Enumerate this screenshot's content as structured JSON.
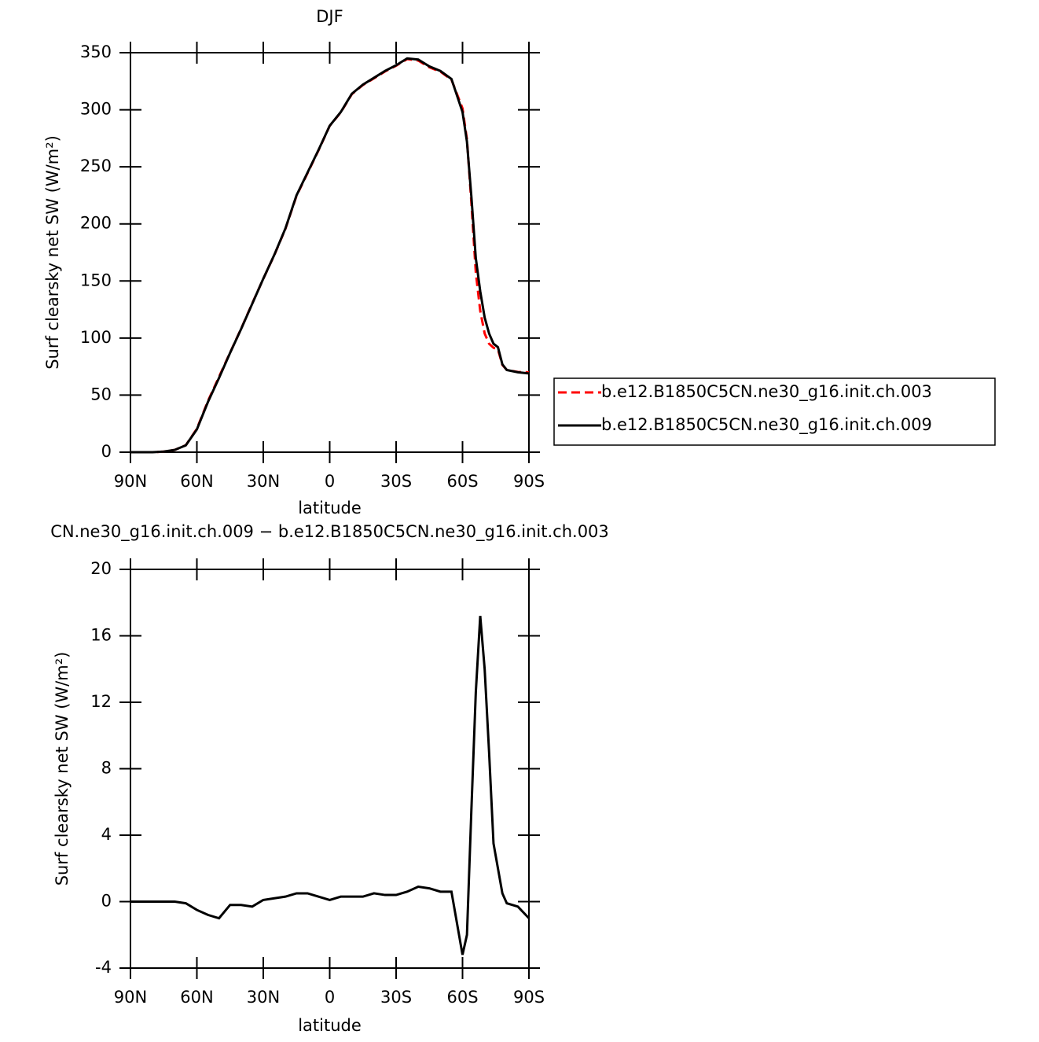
{
  "chart_data": [
    {
      "type": "line",
      "title": "DJF",
      "xlabel": "latitude",
      "ylabel": "Surf clearsky net SW (W/m²)",
      "x": [
        90,
        85,
        80,
        75,
        70,
        65,
        60,
        55,
        50,
        45,
        40,
        35,
        30,
        25,
        20,
        15,
        10,
        5,
        0,
        -5,
        -10,
        -15,
        -20,
        -25,
        -30,
        -35,
        -40,
        -45,
        -50,
        -55,
        -60,
        -62,
        -64,
        -66,
        -68,
        -70,
        -72,
        -74,
        -76,
        -78,
        -80,
        -85,
        -90
      ],
      "xlim": [
        90,
        -90
      ],
      "xticks": [
        {
          "value": 90,
          "label": "90N"
        },
        {
          "value": 60,
          "label": "60N"
        },
        {
          "value": 30,
          "label": "30N"
        },
        0,
        {
          "value": -30,
          "label": "30S"
        },
        {
          "value": -60,
          "label": "60S"
        },
        {
          "value": -90,
          "label": "90S"
        }
      ],
      "ylim": [
        0,
        350
      ],
      "yticks": [
        0,
        50,
        100,
        150,
        200,
        250,
        300,
        350
      ],
      "legend": "right",
      "series": [
        {
          "name": "b.e12.B1850C5CN.ne30_g16.init.ch.003",
          "color": "#ff0000",
          "linestyle": "dashed",
          "values": [
            0,
            0,
            0,
            0.5,
            2,
            6.1,
            20.5,
            44.8,
            66,
            87.2,
            108.2,
            130.3,
            151.9,
            172.8,
            195.7,
            224.5,
            244.5,
            264.7,
            285.9,
            297.7,
            313.7,
            321.7,
            327.5,
            333.6,
            338.6,
            344.4,
            343.1,
            337.2,
            333.4,
            326.4,
            301.2,
            274,
            218.5,
            157.4,
            123.8,
            104,
            95,
            91.5,
            90,
            76.5,
            72.1,
            70.3,
            70
          ]
        },
        {
          "name": "b.e12.B1850C5CN.ne30_g16.init.ch.009",
          "color": "#000000",
          "linestyle": "solid",
          "values": [
            0,
            0,
            0,
            0.5,
            2,
            6,
            20,
            44,
            65,
            87,
            108,
            130,
            152,
            173,
            196,
            225,
            245,
            265,
            286,
            298,
            314,
            322,
            328,
            334,
            339,
            345,
            344,
            338,
            334,
            327,
            298,
            272,
            224,
            170,
            141,
            118,
            104,
            95,
            92,
            77,
            72,
            70,
            69
          ]
        }
      ]
    },
    {
      "type": "line",
      "title": "CN.ne30_g16.init.ch.009 − b.e12.B1850C5CN.ne30_g16.init.ch.003",
      "xlabel": "latitude",
      "ylabel": "Surf clearsky net SW (W/m²)",
      "x": [
        90,
        85,
        80,
        75,
        70,
        65,
        60,
        55,
        50,
        45,
        40,
        35,
        30,
        25,
        20,
        15,
        10,
        5,
        0,
        -5,
        -10,
        -15,
        -20,
        -25,
        -30,
        -35,
        -40,
        -45,
        -50,
        -55,
        -60,
        -62,
        -64,
        -66,
        -68,
        -70,
        -72,
        -74,
        -76,
        -78,
        -80,
        -85,
        -90
      ],
      "xlim": [
        90,
        -90
      ],
      "xticks": [
        {
          "value": 90,
          "label": "90N"
        },
        {
          "value": 60,
          "label": "60N"
        },
        {
          "value": 30,
          "label": "30N"
        },
        0,
        {
          "value": -30,
          "label": "30S"
        },
        {
          "value": -60,
          "label": "60S"
        },
        {
          "value": -90,
          "label": "90S"
        }
      ],
      "ylim": [
        -4,
        20
      ],
      "yticks": [
        -4,
        0,
        4,
        8,
        12,
        16,
        20
      ],
      "series": [
        {
          "color": "#000000",
          "linestyle": "solid",
          "values": [
            0,
            0,
            0,
            0,
            0,
            -0.1,
            -0.5,
            -0.8,
            -1.0,
            -0.2,
            -0.2,
            -0.3,
            0.1,
            0.2,
            0.3,
            0.5,
            0.5,
            0.3,
            0.1,
            0.3,
            0.3,
            0.3,
            0.5,
            0.4,
            0.4,
            0.6,
            0.9,
            0.8,
            0.6,
            0.6,
            -3.2,
            -2.0,
            5.5,
            12.6,
            17.2,
            14,
            9,
            3.5,
            2,
            0.5,
            -0.1,
            -0.3,
            -1.0
          ]
        }
      ]
    }
  ]
}
